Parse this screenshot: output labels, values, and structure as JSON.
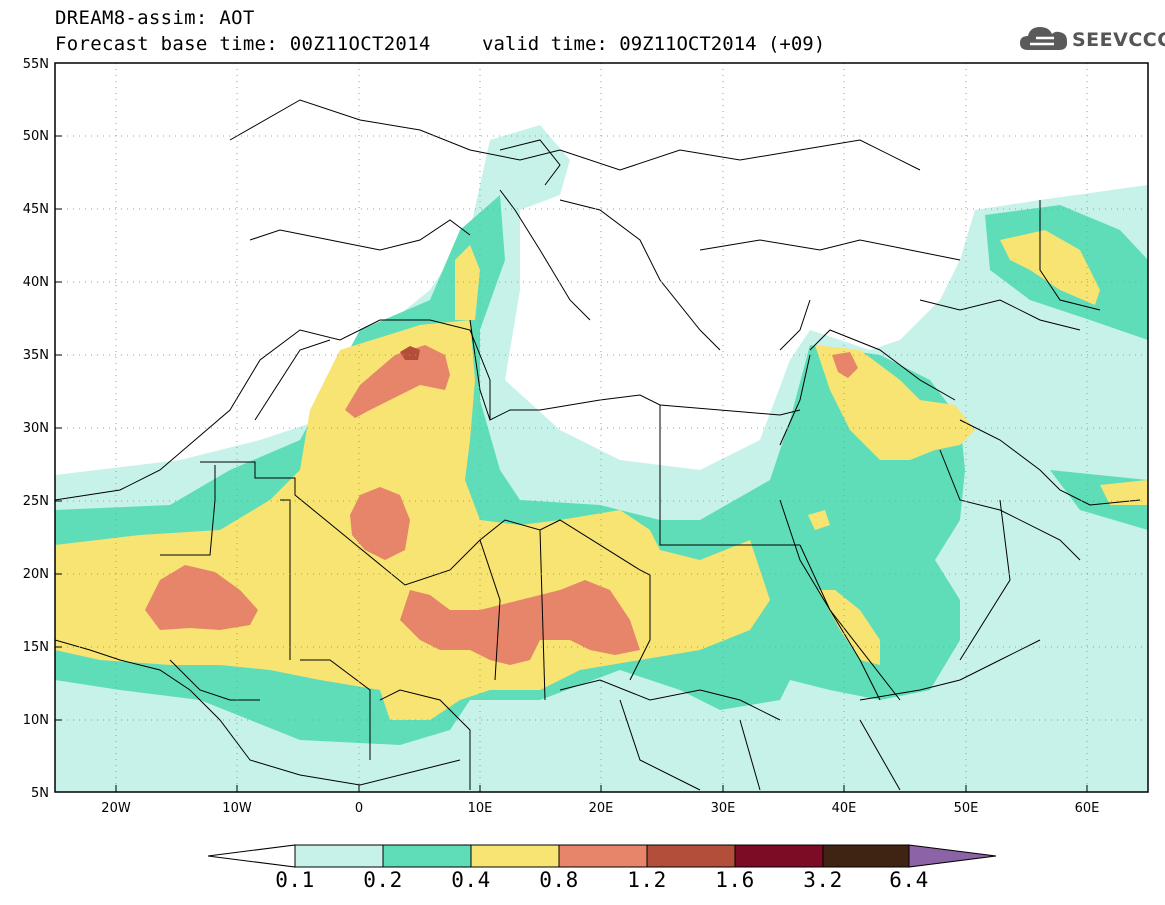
{
  "header": {
    "title": "DREAM8-assim: AOT",
    "base_time_text": "Forecast base time: 00Z11OCT2014",
    "valid_time_text": "valid time: 09Z11OCT2014 (+09)",
    "logo_text": "SEEVCCC",
    "logo_icon": "cloud-icon"
  },
  "map": {
    "lat_range": [
      5,
      55
    ],
    "lon_range": [
      -25,
      65
    ],
    "lat_ticks": [
      "5N",
      "10N",
      "15N",
      "20N",
      "25N",
      "30N",
      "35N",
      "40N",
      "45N",
      "50N",
      "55N"
    ],
    "lon_ticks": [
      "20W",
      "10W",
      "0",
      "10E",
      "20E",
      "30E",
      "40E",
      "50E",
      "60E"
    ],
    "gridlines": "dotted"
  },
  "legend": {
    "levels": [
      "0.1",
      "0.2",
      "0.4",
      "0.8",
      "1.2",
      "1.6",
      "3.2",
      "6.4"
    ],
    "colors": [
      "#ffffff",
      "#c6f2ea",
      "#5fddb8",
      "#f7e473",
      "#e6856a",
      "#b24e39",
      "#7c0b25",
      "#3f2413",
      "#8b63a6"
    ]
  }
}
